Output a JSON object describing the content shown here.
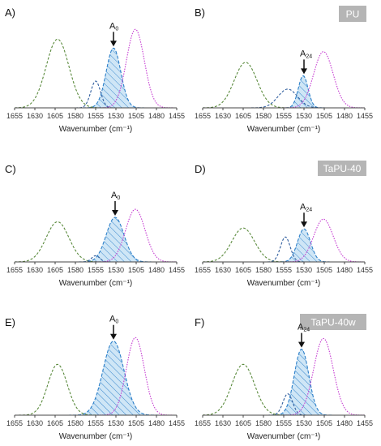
{
  "figure": {
    "badges": [
      "PU",
      "TaPU-40",
      "TaPU-40w"
    ],
    "xlabel": "Wavenumber (cm⁻¹)"
  },
  "chart_data": [
    {
      "type": "line",
      "panel": "A)",
      "xlabel": "Wavenumber (cm⁻¹)",
      "xticks": [
        1655,
        1630,
        1605,
        1580,
        1555,
        1530,
        1505,
        1480,
        1455
      ],
      "xlim": [
        1655,
        1455
      ],
      "x_reversed": true,
      "annotation": {
        "label": "A",
        "subscript": "0",
        "x": 1533
      },
      "series": [
        {
          "center": 1602,
          "amplitude": 0.77,
          "width": 14,
          "color": "#5a8a3c",
          "dash": "3,2",
          "fill": false
        },
        {
          "center": 1555,
          "amplitude": 0.3,
          "width": 6,
          "color": "#2f5d9e",
          "dash": "3,2",
          "fill": false
        },
        {
          "center": 1533,
          "amplitude": 0.67,
          "width": 9,
          "color": "#2b7fc9",
          "dash": "4,2",
          "fill": true
        },
        {
          "center": 1506,
          "amplitude": 0.88,
          "width": 11,
          "color": "#c53ad1",
          "dash": "1.5,1.5",
          "fill": false
        }
      ]
    },
    {
      "type": "line",
      "panel": "B)",
      "xlabel": "Wavenumber (cm⁻¹)",
      "xticks": [
        1655,
        1630,
        1605,
        1580,
        1555,
        1530,
        1505,
        1480,
        1455
      ],
      "xlim": [
        1655,
        1455
      ],
      "x_reversed": true,
      "annotation": {
        "label": "A",
        "subscript": "24",
        "x": 1530
      },
      "series": [
        {
          "center": 1602,
          "amplitude": 0.51,
          "width": 14,
          "color": "#5a8a3c",
          "dash": "3,2",
          "fill": false
        },
        {
          "center": 1550,
          "amplitude": 0.21,
          "width": 12,
          "color": "#2f5d9e",
          "dash": "3,2",
          "fill": false
        },
        {
          "center": 1531,
          "amplitude": 0.36,
          "width": 6,
          "color": "#2b7fc9",
          "dash": "4,2",
          "fill": true
        },
        {
          "center": 1506,
          "amplitude": 0.63,
          "width": 12,
          "color": "#c53ad1",
          "dash": "1.5,1.5",
          "fill": false
        }
      ]
    },
    {
      "type": "line",
      "panel": "C)",
      "xlabel": "Wavenumber (cm⁻¹)",
      "xticks": [
        1655,
        1630,
        1605,
        1580,
        1555,
        1530,
        1505,
        1480,
        1455
      ],
      "xlim": [
        1655,
        1455
      ],
      "x_reversed": true,
      "annotation": {
        "label": "A",
        "subscript": "0",
        "x": 1531
      },
      "series": [
        {
          "center": 1602,
          "amplitude": 0.45,
          "width": 14,
          "color": "#5a8a3c",
          "dash": "3,2",
          "fill": false
        },
        {
          "center": 1555,
          "amplitude": 0.07,
          "width": 5,
          "color": "#2f5d9e",
          "dash": "3,2",
          "fill": false
        },
        {
          "center": 1531,
          "amplitude": 0.5,
          "width": 11,
          "color": "#2b7fc9",
          "dash": "4,2",
          "fill": true
        },
        {
          "center": 1506,
          "amplitude": 0.59,
          "width": 12,
          "color": "#c53ad1",
          "dash": "1.5,1.5",
          "fill": false
        }
      ]
    },
    {
      "type": "line",
      "panel": "D)",
      "xlabel": "Wavenumber (cm⁻¹)",
      "xticks": [
        1655,
        1630,
        1605,
        1580,
        1555,
        1530,
        1505,
        1480,
        1455
      ],
      "xlim": [
        1655,
        1455
      ],
      "x_reversed": true,
      "annotation": {
        "label": "A",
        "subscript": "24",
        "x": 1530
      },
      "series": [
        {
          "center": 1605,
          "amplitude": 0.38,
          "width": 14,
          "color": "#5a8a3c",
          "dash": "3,2",
          "fill": false
        },
        {
          "center": 1553,
          "amplitude": 0.28,
          "width": 6,
          "color": "#2f5d9e",
          "dash": "3,2",
          "fill": false
        },
        {
          "center": 1530,
          "amplitude": 0.37,
          "width": 8,
          "color": "#2b7fc9",
          "dash": "4,2",
          "fill": true
        },
        {
          "center": 1506,
          "amplitude": 0.48,
          "width": 12,
          "color": "#c53ad1",
          "dash": "1.5,1.5",
          "fill": false
        }
      ]
    },
    {
      "type": "line",
      "panel": "E)",
      "xlabel": "Wavenumber (cm⁻¹)",
      "xticks": [
        1655,
        1630,
        1605,
        1580,
        1555,
        1530,
        1505,
        1480,
        1455
      ],
      "xlim": [
        1655,
        1455
      ],
      "x_reversed": true,
      "annotation": {
        "label": "A",
        "subscript": "0",
        "x": 1533
      },
      "series": [
        {
          "center": 1602,
          "amplitude": 0.57,
          "width": 12,
          "color": "#5a8a3c",
          "dash": "3,2",
          "fill": false
        },
        {
          "center": 1533,
          "amplitude": 0.83,
          "width": 13,
          "color": "#2b7fc9",
          "dash": "4,2",
          "fill": true
        },
        {
          "center": 1506,
          "amplitude": 0.87,
          "width": 11,
          "color": "#c53ad1",
          "dash": "1.5,1.5",
          "fill": false
        }
      ]
    },
    {
      "type": "line",
      "panel": "F)",
      "xlabel": "Wavenumber (cm⁻¹)",
      "xticks": [
        1655,
        1630,
        1605,
        1580,
        1555,
        1530,
        1505,
        1480,
        1455
      ],
      "xlim": [
        1655,
        1455
      ],
      "x_reversed": true,
      "annotation": {
        "label": "A",
        "subscript": "24",
        "x": 1533
      },
      "series": [
        {
          "center": 1605,
          "amplitude": 0.57,
          "width": 14,
          "color": "#5a8a3c",
          "dash": "3,2",
          "fill": false
        },
        {
          "center": 1550,
          "amplitude": 0.24,
          "width": 6,
          "color": "#2f5d9e",
          "dash": "3,2",
          "fill": false
        },
        {
          "center": 1533,
          "amplitude": 0.74,
          "width": 9,
          "color": "#2b7fc9",
          "dash": "4,2",
          "fill": true
        },
        {
          "center": 1506,
          "amplitude": 0.86,
          "width": 12,
          "color": "#c53ad1",
          "dash": "1.5,1.5",
          "fill": false
        }
      ]
    }
  ]
}
